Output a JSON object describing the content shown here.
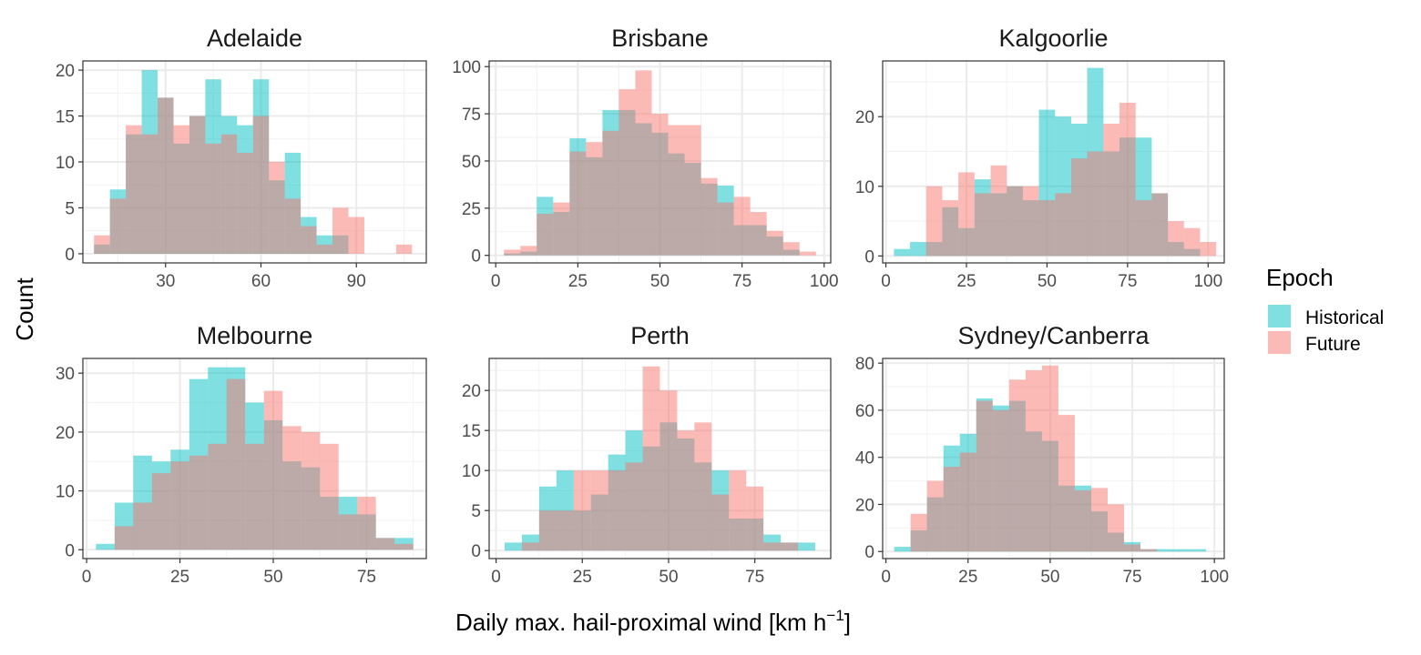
{
  "figure": {
    "xlabel": "Daily max. hail-proximal wind [km h",
    "xlabel_exponent": "−1",
    "xlabel_close": "]",
    "ylabel": "Count"
  },
  "legend": {
    "title": "Epoch",
    "items": [
      {
        "label": "Historical",
        "color": "#00BFC4"
      },
      {
        "label": "Future",
        "color": "#F8766D"
      }
    ]
  },
  "chart_data": [
    {
      "type": "histogram",
      "title": "Adelaide",
      "xlim": [
        4,
        112
      ],
      "ylim": [
        -1,
        21
      ],
      "xticks": [
        30,
        60,
        90
      ],
      "yticks": [
        0,
        5,
        10,
        15,
        20
      ],
      "bin_centers": [
        10,
        15,
        20,
        25,
        30,
        35,
        40,
        45,
        50,
        55,
        60,
        65,
        70,
        75,
        80,
        85,
        90,
        95,
        100,
        105
      ],
      "bin_width": 5,
      "series": [
        {
          "name": "Historical",
          "color": "#00BFC4",
          "values": [
            1,
            7,
            13,
            20,
            17,
            12,
            15,
            19,
            15,
            14,
            19,
            8,
            11,
            4,
            2,
            2,
            0,
            0,
            0,
            0
          ]
        },
        {
          "name": "Future",
          "color": "#F8766D",
          "values": [
            2,
            6,
            14,
            13,
            17,
            14,
            15,
            12,
            13,
            11,
            15,
            10,
            6,
            3,
            1,
            5,
            4,
            0,
            0,
            1
          ]
        }
      ]
    },
    {
      "type": "histogram",
      "title": "Brisbane",
      "xlim": [
        -2,
        102
      ],
      "ylim": [
        -4,
        103
      ],
      "xticks": [
        0,
        25,
        50,
        75,
        100
      ],
      "yticks": [
        0,
        25,
        50,
        75,
        100
      ],
      "bin_centers": [
        5,
        10,
        15,
        20,
        25,
        30,
        35,
        40,
        45,
        50,
        55,
        60,
        65,
        70,
        75,
        80,
        85,
        90,
        95
      ],
      "bin_width": 5,
      "series": [
        {
          "name": "Historical",
          "color": "#00BFC4",
          "values": [
            1,
            2,
            31,
            23,
            62,
            52,
            77,
            77,
            70,
            65,
            54,
            49,
            38,
            37,
            16,
            16,
            10,
            3,
            0
          ]
        },
        {
          "name": "Future",
          "color": "#F8766D",
          "values": [
            3,
            5,
            22,
            28,
            55,
            60,
            66,
            88,
            98,
            75,
            69,
            69,
            41,
            28,
            31,
            23,
            13,
            7,
            2
          ]
        }
      ]
    },
    {
      "type": "histogram",
      "title": "Kalgoorlie",
      "xlim": [
        -1,
        105
      ],
      "ylim": [
        -1,
        28
      ],
      "xticks": [
        0,
        25,
        50,
        75,
        100
      ],
      "yticks": [
        0,
        10,
        20
      ],
      "bin_centers": [
        5,
        10,
        15,
        20,
        25,
        30,
        35,
        40,
        45,
        50,
        55,
        60,
        65,
        70,
        75,
        80,
        85,
        90,
        95,
        100
      ],
      "bin_width": 5,
      "series": [
        {
          "name": "Historical",
          "color": "#00BFC4",
          "values": [
            1,
            2,
            2,
            7,
            4,
            11,
            9,
            10,
            8,
            21,
            20,
            19,
            27,
            15,
            17,
            17,
            9,
            2,
            1,
            0
          ]
        },
        {
          "name": "Future",
          "color": "#F8766D",
          "values": [
            0,
            0,
            10,
            8,
            12,
            9,
            13,
            10,
            10,
            8,
            9,
            14,
            15,
            19,
            22,
            8,
            9,
            5,
            4,
            2
          ]
        }
      ]
    },
    {
      "type": "histogram",
      "title": "Melbourne",
      "xlim": [
        -1,
        91
      ],
      "ylim": [
        -1.5,
        32.5
      ],
      "xticks": [
        0,
        25,
        50,
        75
      ],
      "yticks": [
        0,
        10,
        20,
        30
      ],
      "bin_centers": [
        5,
        10,
        15,
        20,
        25,
        30,
        35,
        40,
        45,
        50,
        55,
        60,
        65,
        70,
        75,
        80,
        85
      ],
      "bin_width": 5,
      "series": [
        {
          "name": "Historical",
          "color": "#00BFC4",
          "values": [
            1,
            8,
            16,
            15,
            17,
            29,
            31,
            31,
            25,
            22,
            15,
            14,
            9,
            9,
            6,
            2,
            2
          ]
        },
        {
          "name": "Future",
          "color": "#F8766D",
          "values": [
            0,
            4,
            8,
            13,
            15,
            16,
            18,
            29,
            18,
            27,
            21,
            20,
            18,
            6,
            9,
            2,
            1
          ]
        }
      ]
    },
    {
      "type": "histogram",
      "title": "Perth",
      "xlim": [
        -2,
        97
      ],
      "ylim": [
        -1,
        24
      ],
      "xticks": [
        0,
        25,
        50,
        75
      ],
      "yticks": [
        0,
        5,
        10,
        15,
        20
      ],
      "bin_centers": [
        5,
        10,
        15,
        20,
        25,
        30,
        35,
        40,
        45,
        50,
        55,
        60,
        65,
        70,
        75,
        80,
        85,
        90
      ],
      "bin_width": 5,
      "series": [
        {
          "name": "Historical",
          "color": "#00BFC4",
          "values": [
            1,
            2,
            8,
            10,
            5,
            7,
            12,
            15,
            13,
            16,
            14,
            11,
            10,
            4,
            4,
            2,
            1,
            1
          ]
        },
        {
          "name": "Future",
          "color": "#F8766D",
          "values": [
            0,
            1,
            5,
            5,
            10,
            10,
            10,
            11,
            23,
            20,
            15,
            16,
            7,
            10,
            8,
            1,
            1,
            0
          ]
        }
      ]
    },
    {
      "type": "histogram",
      "title": "Sydney/Canberra",
      "xlim": [
        -1,
        103
      ],
      "ylim": [
        -3,
        82
      ],
      "xticks": [
        0,
        25,
        50,
        75,
        100
      ],
      "yticks": [
        0,
        20,
        40,
        60,
        80
      ],
      "bin_centers": [
        5,
        10,
        15,
        20,
        25,
        30,
        35,
        40,
        45,
        50,
        55,
        60,
        65,
        70,
        75,
        80,
        85,
        90,
        95
      ],
      "bin_width": 5,
      "series": [
        {
          "name": "Historical",
          "color": "#00BFC4",
          "values": [
            2,
            9,
            23,
            45,
            50,
            65,
            62,
            64,
            51,
            47,
            28,
            28,
            17,
            8,
            4,
            1,
            1,
            1,
            1
          ]
        },
        {
          "name": "Future",
          "color": "#F8766D",
          "values": [
            0,
            16,
            30,
            36,
            42,
            64,
            60,
            73,
            77,
            79,
            58,
            26,
            27,
            20,
            3,
            1,
            0,
            0,
            0
          ]
        }
      ]
    }
  ]
}
